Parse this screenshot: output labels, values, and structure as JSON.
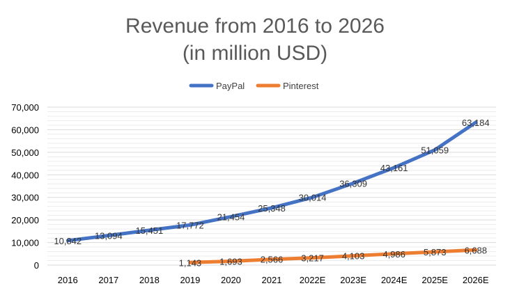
{
  "chart_data": {
    "type": "line",
    "title_line1": "Revenue from 2016 to 2026",
    "title_line2": "(in million USD)",
    "categories": [
      "2016",
      "2017",
      "2018",
      "2019",
      "2020",
      "2021",
      "2022E",
      "2023E",
      "2024E",
      "2025E",
      "2026E"
    ],
    "series": [
      {
        "name": "PayPal",
        "color": "#4472C4",
        "values": [
          10842,
          13094,
          15451,
          17772,
          21454,
          25348,
          30014,
          36309,
          43161,
          51059,
          63184
        ],
        "labels": [
          "10,842",
          "13,094",
          "15,451",
          "17,772",
          "21,454",
          "25,348",
          "30,014",
          "36,309",
          "43,161",
          "51,059",
          "63,184"
        ]
      },
      {
        "name": "Pinterest",
        "color": "#ED7D31",
        "values": [
          null,
          null,
          null,
          1143,
          1693,
          2566,
          3217,
          4103,
          4986,
          5873,
          6688
        ],
        "labels": [
          "",
          "",
          "",
          "1,143",
          "1,693",
          "2,566",
          "3,217",
          "4,103",
          "4,986",
          "5,873",
          "6,688"
        ]
      }
    ],
    "ylim": [
      0,
      70000
    ],
    "yticks": [
      "0",
      "10,000",
      "20,000",
      "30,000",
      "40,000",
      "50,000",
      "60,000",
      "70,000"
    ],
    "ytick_values": [
      0,
      10000,
      20000,
      30000,
      40000,
      50000,
      60000,
      70000
    ],
    "minor_grid_step": 2000,
    "legend_position": "top",
    "gridlines": true
  }
}
